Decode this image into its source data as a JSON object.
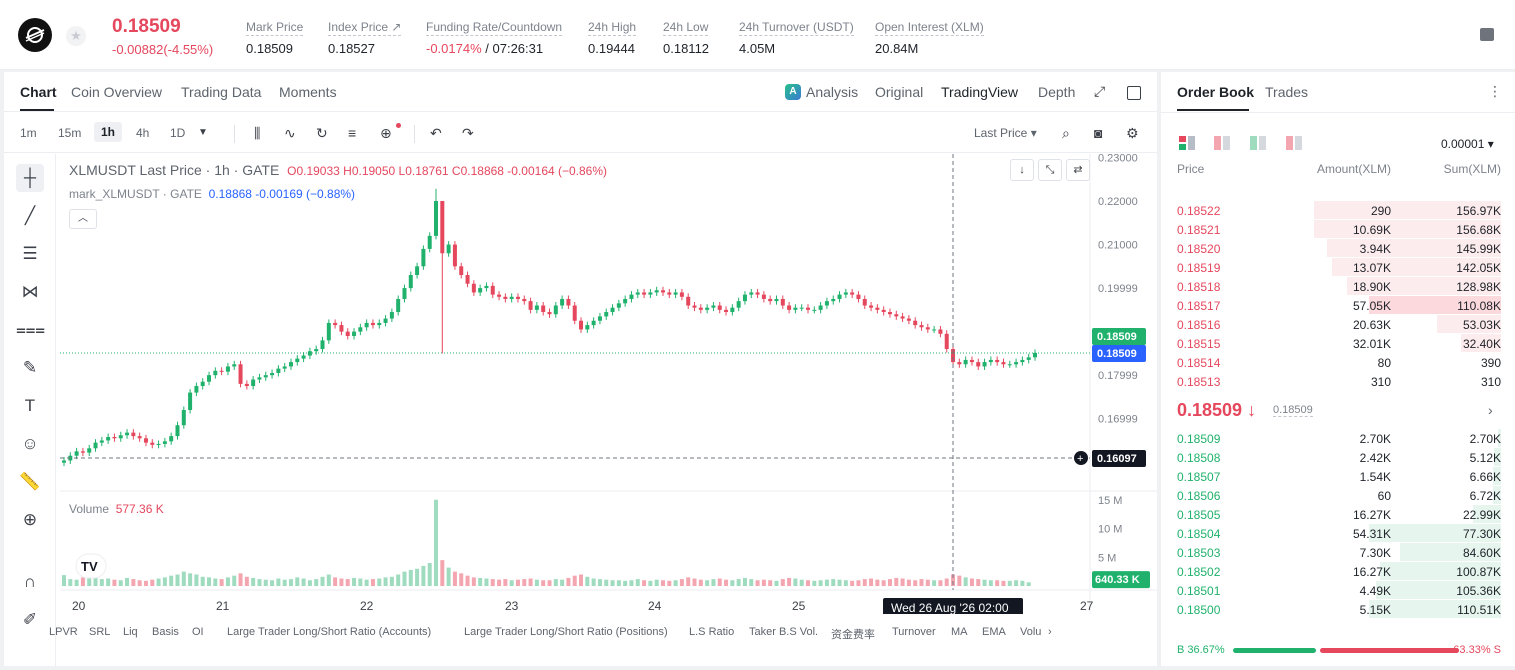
{
  "ticker": {
    "last_price": "0.18509",
    "change": "-0.00882(-4.55%)",
    "stats": [
      {
        "label": "Mark Price",
        "value": "0.18509"
      },
      {
        "label": "Index Price ↗",
        "value": "0.18527"
      },
      {
        "label": "Funding Rate/Countdown",
        "value_neg": "-0.0174%",
        "value": " / 07:26:31"
      },
      {
        "label": "24h High",
        "value": "0.19444"
      },
      {
        "label": "24h Low",
        "value": "0.18112"
      },
      {
        "label": "24h Turnover (USDT)",
        "value": "4.05M"
      },
      {
        "label": "Open Interest (XLM)",
        "value": "20.84M"
      }
    ]
  },
  "chart_tabs": [
    "Chart",
    "Coin Overview",
    "Trading Data",
    "Moments"
  ],
  "view_modes": [
    "Analysis",
    "Original",
    "TradingView",
    "Depth"
  ],
  "intervals": [
    "1m",
    "15m",
    "1h",
    "4h",
    "1D"
  ],
  "price_type": "Last Price",
  "legend": {
    "main": "XLMUSDT Last Price · 1h · GATE",
    "ohlc": "O0.19033  H0.19050  L0.18761  C0.18868  -0.00164 (−0.86%)",
    "mark_label": "mark_XLMUSDT · GATE",
    "mark_values": "0.18868  -0.00169 (−0.88%)",
    "volume_label": "Volume",
    "volume_value": "577.36 K"
  },
  "crosshair": {
    "price": "0.16097",
    "time": "Wed 26 Aug '26   02:00"
  },
  "indicators": [
    "LPVR",
    "SRL",
    "Liq",
    "Basis",
    "OI",
    "Large Trader Long/Short Ratio (Accounts)",
    "Large Trader Long/Short Ratio (Positions)",
    "L.S Ratio",
    "Taker B.S Vol.",
    "资金费率",
    "Turnover",
    "MA",
    "EMA",
    "Volu"
  ],
  "chart_data": {
    "type": "candlestick",
    "title": "XLMUSDT Last Price · 1h · GATE",
    "x_ticks": [
      "20",
      "21",
      "22",
      "23",
      "24",
      "25",
      "27"
    ],
    "y_ticks": [
      "0.23000",
      "0.22000",
      "0.21000",
      "0.19999",
      "0.17999",
      "0.16999"
    ],
    "y_range": [
      0.155,
      0.2308
    ],
    "volume_ticks": [
      "15 M",
      "10 M",
      "5 M"
    ],
    "volume_range": [
      0,
      16
    ],
    "last_price_label": "0.18509",
    "mark_price_label": "0.18509",
    "current_volume_label": "640.33 K",
    "closes": [
      0.1604,
      0.1615,
      0.1625,
      0.1622,
      0.1632,
      0.1645,
      0.165,
      0.1658,
      0.1655,
      0.1662,
      0.1668,
      0.166,
      0.1655,
      0.1645,
      0.164,
      0.1642,
      0.1648,
      0.166,
      0.1685,
      0.172,
      0.176,
      0.1775,
      0.1785,
      0.18,
      0.181,
      0.1808,
      0.182,
      0.1825,
      0.178,
      0.1775,
      0.179,
      0.1795,
      0.18,
      0.1805,
      0.1815,
      0.182,
      0.183,
      0.1838,
      0.1845,
      0.1855,
      0.186,
      0.188,
      0.192,
      0.1915,
      0.19,
      0.189,
      0.19,
      0.191,
      0.192,
      0.1915,
      0.192,
      0.193,
      0.1945,
      0.1975,
      0.2,
      0.203,
      0.205,
      0.209,
      0.212,
      0.22,
      0.208,
      0.21,
      0.205,
      0.203,
      0.201,
      0.199,
      0.2,
      0.2005,
      0.1985,
      0.198,
      0.1975,
      0.198,
      0.1975,
      0.197,
      0.195,
      0.196,
      0.1945,
      0.194,
      0.196,
      0.1975,
      0.196,
      0.1925,
      0.1905,
      0.1915,
      0.1925,
      0.1935,
      0.1945,
      0.1955,
      0.1965,
      0.1975,
      0.1985,
      0.199,
      0.1985,
      0.199,
      0.1995,
      0.199,
      0.1985,
      0.199,
      0.198,
      0.196,
      0.1955,
      0.195,
      0.1955,
      0.196,
      0.195,
      0.1945,
      0.1955,
      0.197,
      0.1985,
      0.199,
      0.1985,
      0.1975,
      0.197,
      0.1975,
      0.196,
      0.195,
      0.1955,
      0.1955,
      0.195,
      0.195,
      0.196,
      0.197,
      0.1975,
      0.1985,
      0.199,
      0.1985,
      0.1975,
      0.196,
      0.1955,
      0.195,
      0.1945,
      0.194,
      0.1935,
      0.193,
      0.1925,
      0.1915,
      0.191,
      0.1905,
      0.1905,
      0.1895,
      0.186,
      0.183,
      0.1825,
      0.1835,
      0.183,
      0.182,
      0.183,
      0.1835,
      0.183,
      0.1825,
      0.1825,
      0.183,
      0.1835,
      0.1841,
      0.1851
    ],
    "volumes": [
      1.9,
      1.2,
      1.1,
      1.5,
      1.4,
      1.6,
      1.2,
      1.3,
      1.1,
      1.0,
      1.4,
      1.2,
      1.0,
      0.9,
      1.1,
      1.3,
      1.5,
      1.8,
      2.0,
      2.5,
      2.2,
      2.0,
      1.6,
      1.5,
      1.3,
      1.2,
      1.5,
      1.8,
      2.2,
      1.6,
      1.4,
      1.2,
      1.1,
      1.0,
      1.3,
      1.1,
      1.2,
      1.5,
      1.3,
      1.0,
      1.2,
      1.6,
      2.0,
      1.5,
      1.3,
      1.2,
      1.4,
      1.3,
      1.1,
      1.2,
      1.3,
      1.5,
      1.6,
      2.0,
      2.5,
      2.8,
      3.0,
      3.5,
      4.0,
      15.0,
      4.5,
      3.2,
      2.5,
      2.2,
      1.8,
      1.5,
      1.4,
      1.3,
      1.2,
      1.1,
      1.2,
      1.0,
      1.1,
      1.2,
      1.3,
      1.1,
      1.0,
      1.0,
      1.2,
      1.1,
      1.4,
      1.8,
      2.0,
      1.6,
      1.3,
      1.2,
      1.1,
      1.0,
      1.0,
      0.9,
      1.0,
      1.2,
      1.0,
      0.9,
      1.1,
      1.0,
      0.9,
      1.0,
      1.2,
      1.5,
      1.3,
      1.1,
      1.0,
      1.2,
      1.3,
      1.1,
      1.0,
      1.2,
      1.4,
      1.2,
      1.0,
      1.1,
      1.0,
      0.9,
      1.2,
      1.4,
      1.3,
      1.1,
      1.0,
      0.9,
      1.0,
      1.1,
      1.2,
      1.1,
      1.0,
      0.9,
      1.0,
      1.2,
      1.3,
      1.1,
      1.0,
      1.2,
      1.4,
      1.3,
      1.1,
      1.0,
      1.2,
      1.1,
      1.0,
      1.0,
      1.3,
      2.0,
      1.8,
      1.5,
      1.3,
      1.2,
      1.1,
      1.0,
      1.0,
      0.9,
      0.9,
      1.0,
      0.9,
      0.64
    ]
  },
  "order_book": {
    "tabs": [
      "Order Book",
      "Trades"
    ],
    "precision": "0.00001",
    "headers": {
      "price": "Price",
      "amount": "Amount(XLM)",
      "sum": "Sum(XLM)"
    },
    "asks": [
      {
        "price": "0.18522",
        "amount": "290",
        "sum": "156.97K",
        "depth": 0.85
      },
      {
        "price": "0.18521",
        "amount": "10.69K",
        "sum": "156.68K",
        "depth": 0.85
      },
      {
        "price": "0.18520",
        "amount": "3.94K",
        "sum": "145.99K",
        "depth": 0.79
      },
      {
        "price": "0.18519",
        "amount": "13.07K",
        "sum": "142.05K",
        "depth": 0.77
      },
      {
        "price": "0.18518",
        "amount": "18.90K",
        "sum": "128.98K",
        "depth": 0.7
      },
      {
        "price": "0.18517",
        "amount": "57.05K",
        "sum": "110.08K",
        "depth": 0.6
      },
      {
        "price": "0.18516",
        "amount": "20.63K",
        "sum": "53.03K",
        "depth": 0.29
      },
      {
        "price": "0.18515",
        "amount": "32.01K",
        "sum": "32.40K",
        "depth": 0.18
      },
      {
        "price": "0.18514",
        "amount": "80",
        "sum": "390",
        "depth": 0.0
      },
      {
        "price": "0.18513",
        "amount": "310",
        "sum": "310",
        "depth": 0.0
      }
    ],
    "mid_price": "0.18509 ↓",
    "mid_mark": "0.18509",
    "bids": [
      {
        "price": "0.18509",
        "amount": "2.70K",
        "sum": "2.70K",
        "depth": 0.015
      },
      {
        "price": "0.18508",
        "amount": "2.42K",
        "sum": "5.12K",
        "depth": 0.03
      },
      {
        "price": "0.18507",
        "amount": "1.54K",
        "sum": "6.66K",
        "depth": 0.036
      },
      {
        "price": "0.18506",
        "amount": "60",
        "sum": "6.72K",
        "depth": 0.036
      },
      {
        "price": "0.18505",
        "amount": "16.27K",
        "sum": "22.99K",
        "depth": 0.125
      },
      {
        "price": "0.18504",
        "amount": "54.31K",
        "sum": "77.30K",
        "depth": 0.6
      },
      {
        "price": "0.18503",
        "amount": "7.30K",
        "sum": "84.60K",
        "depth": 0.46
      },
      {
        "price": "0.18502",
        "amount": "16.27K",
        "sum": "100.87K",
        "depth": 0.55
      },
      {
        "price": "0.18501",
        "amount": "4.49K",
        "sum": "105.36K",
        "depth": 0.57
      },
      {
        "price": "0.18500",
        "amount": "5.15K",
        "sum": "110.51K",
        "depth": 0.6
      }
    ],
    "buy_ratio": "B 36.67%",
    "sell_ratio": "63.33% S",
    "buy_fraction": 0.3667
  },
  "colors": {
    "up": "#20b26c",
    "down": "#e5475d",
    "accent_blue": "#2962ff"
  }
}
